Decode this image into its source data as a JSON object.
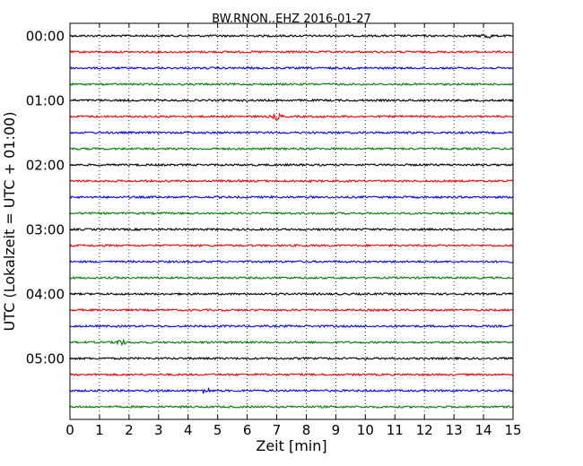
{
  "chart_data": {
    "type": "line",
    "title": "BW.RNON..EHZ 2016-01-27",
    "xlabel": "Zeit  [min]",
    "ylabel": "UTC (Lokalzeit = UTC + 01:00)",
    "xlim": [
      0,
      15
    ],
    "x_ticks": [
      "0",
      "1",
      "2",
      "3",
      "4",
      "5",
      "6",
      "7",
      "8",
      "9",
      "10",
      "11",
      "12",
      "13",
      "14",
      "15"
    ],
    "y_ticks": [
      "00:00",
      "01:00",
      "02:00",
      "03:00",
      "04:00",
      "05:00"
    ],
    "grid": {
      "x": "dotted",
      "y": false
    },
    "trace_colors": [
      "#000000",
      "#ff0000",
      "#0000ff",
      "#008000"
    ],
    "traces": [
      {
        "start": "00:00",
        "color": "#000000"
      },
      {
        "start": "00:15",
        "color": "#ff0000"
      },
      {
        "start": "00:30",
        "color": "#0000ff"
      },
      {
        "start": "00:45",
        "color": "#008000"
      },
      {
        "start": "01:00",
        "color": "#000000"
      },
      {
        "start": "01:15",
        "color": "#ff0000"
      },
      {
        "start": "01:30",
        "color": "#0000ff"
      },
      {
        "start": "01:45",
        "color": "#008000"
      },
      {
        "start": "02:00",
        "color": "#000000"
      },
      {
        "start": "02:15",
        "color": "#ff0000"
      },
      {
        "start": "02:30",
        "color": "#0000ff"
      },
      {
        "start": "02:45",
        "color": "#008000"
      },
      {
        "start": "03:00",
        "color": "#000000"
      },
      {
        "start": "03:15",
        "color": "#ff0000"
      },
      {
        "start": "03:30",
        "color": "#0000ff"
      },
      {
        "start": "03:45",
        "color": "#008000"
      },
      {
        "start": "04:00",
        "color": "#000000"
      },
      {
        "start": "04:15",
        "color": "#ff0000"
      },
      {
        "start": "04:30",
        "color": "#0000ff"
      },
      {
        "start": "04:45",
        "color": "#008000"
      },
      {
        "start": "05:00",
        "color": "#000000"
      },
      {
        "start": "05:15",
        "color": "#ff0000"
      },
      {
        "start": "05:30",
        "color": "#0000ff"
      },
      {
        "start": "05:45",
        "color": "#008000"
      }
    ],
    "events": [
      {
        "trace": "00:00",
        "minute": 14.1
      },
      {
        "trace": "01:15",
        "minute": 7.0
      },
      {
        "trace": "04:45",
        "minute": 1.7
      },
      {
        "trace": "05:30",
        "minute": 4.6
      }
    ]
  }
}
